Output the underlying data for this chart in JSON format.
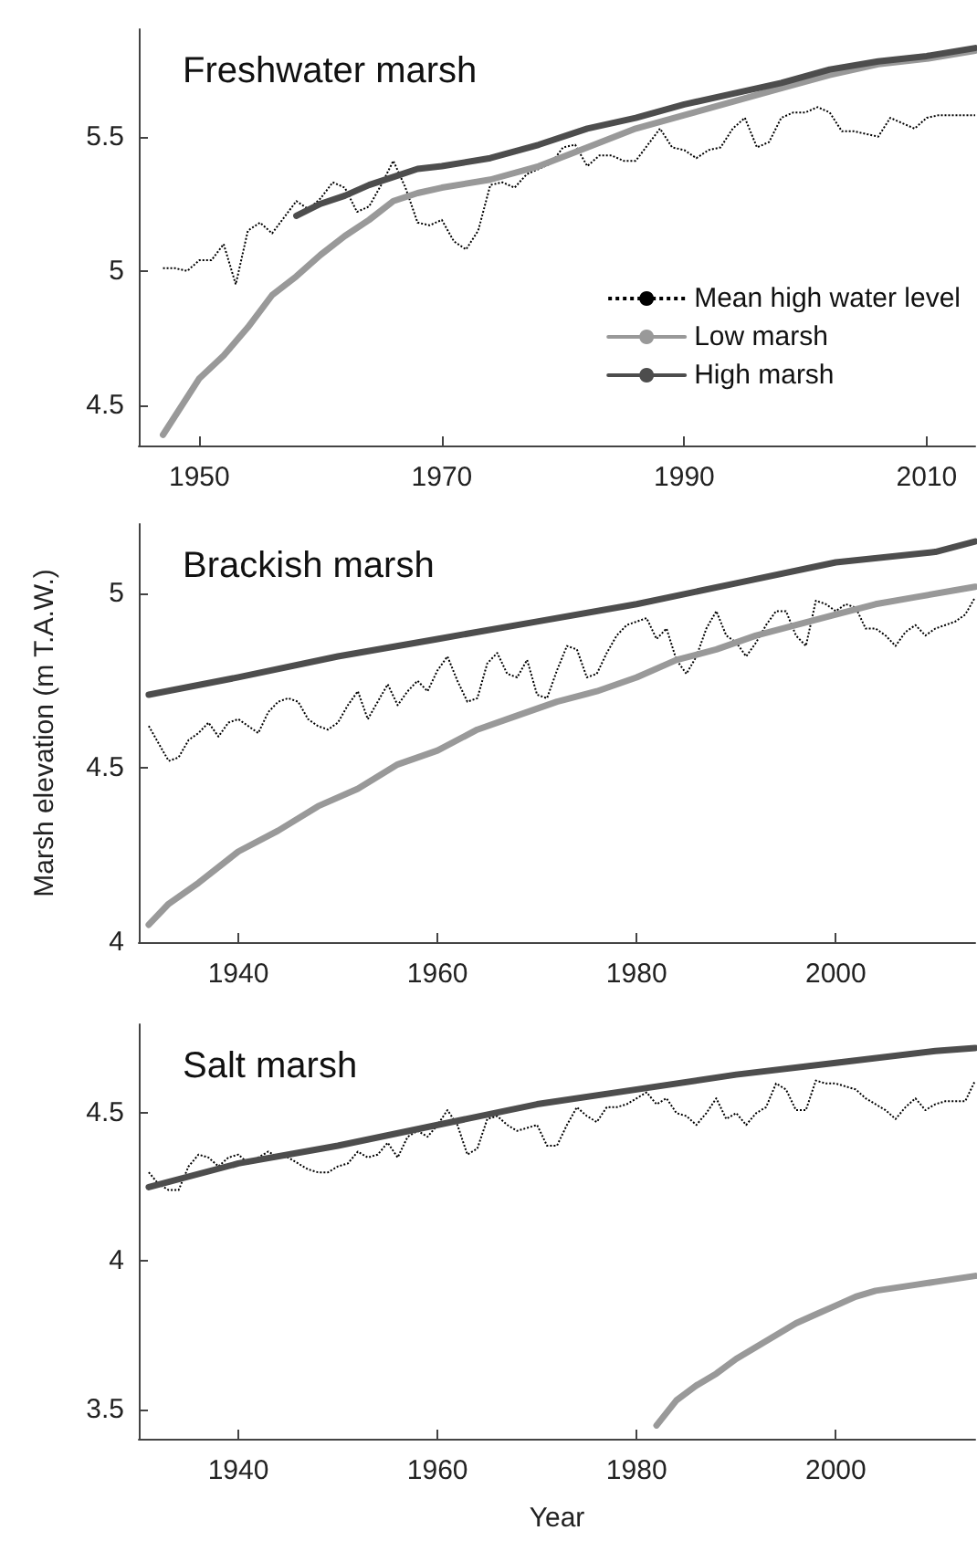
{
  "chart_data": [
    {
      "type": "line",
      "title": "Freshwater marsh",
      "xlim": [
        1945,
        2014
      ],
      "xticks": [
        1950,
        1970,
        1990,
        2010
      ],
      "ylim": [
        4.35,
        5.9
      ],
      "yticks": [
        4.5,
        5,
        5.5
      ],
      "legend": "bottom right",
      "grid": false,
      "marker": "none",
      "series": [
        {
          "name": "Mean high water level",
          "color": "#000000",
          "line_style": "dotted",
          "x": [
            1947,
            1948,
            1949,
            1950,
            1951,
            1952,
            1953,
            1954,
            1955,
            1956,
            1957,
            1958,
            1959,
            1960,
            1961,
            1962,
            1963,
            1964,
            1965,
            1966,
            1967,
            1968,
            1969,
            1970,
            1971,
            1972,
            1973,
            1974,
            1975,
            1976,
            1977,
            1978,
            1979,
            1980,
            1981,
            1982,
            1983,
            1984,
            1985,
            1986,
            1987,
            1988,
            1989,
            1990,
            1991,
            1992,
            1993,
            1994,
            1995,
            1996,
            1997,
            1998,
            1999,
            2000,
            2001,
            2002,
            2003,
            2004,
            2005,
            2006,
            2007,
            2008,
            2009,
            2010,
            2011,
            2012,
            2013,
            2014
          ],
          "values": [
            5.01,
            5.01,
            5.0,
            5.04,
            5.04,
            5.1,
            4.95,
            5.15,
            5.18,
            5.14,
            5.2,
            5.26,
            5.23,
            5.27,
            5.33,
            5.31,
            5.22,
            5.24,
            5.32,
            5.41,
            5.31,
            5.18,
            5.17,
            5.19,
            5.11,
            5.08,
            5.15,
            5.32,
            5.33,
            5.31,
            5.36,
            5.38,
            5.4,
            5.46,
            5.47,
            5.39,
            5.43,
            5.43,
            5.41,
            5.41,
            5.47,
            5.53,
            5.46,
            5.45,
            5.42,
            5.45,
            5.46,
            5.53,
            5.57,
            5.46,
            5.48,
            5.57,
            5.59,
            5.59,
            5.61,
            5.59,
            5.52,
            5.52,
            5.51,
            5.5,
            5.57,
            5.55,
            5.53,
            5.57,
            5.58,
            5.58,
            5.58,
            5.58
          ]
        },
        {
          "name": "Low marsh",
          "color": "#999999",
          "line_style": "solid",
          "x": [
            1947,
            1950,
            1952,
            1954,
            1956,
            1958,
            1960,
            1962,
            1964,
            1966,
            1968,
            1970,
            1974,
            1978,
            1982,
            1986,
            1990,
            1994,
            1998,
            2002,
            2006,
            2010,
            2014
          ],
          "values": [
            4.39,
            4.6,
            4.685,
            4.79,
            4.91,
            4.98,
            5.06,
            5.13,
            5.19,
            5.26,
            5.29,
            5.31,
            5.34,
            5.39,
            5.46,
            5.53,
            5.58,
            5.63,
            5.68,
            5.73,
            5.77,
            5.79,
            5.82
          ]
        },
        {
          "name": "High marsh",
          "color": "#4d4d4d",
          "line_style": "solid",
          "x": [
            1958,
            1960,
            1962,
            1964,
            1966,
            1968,
            1970,
            1974,
            1978,
            1982,
            1986,
            1990,
            1994,
            1998,
            2002,
            2006,
            2010,
            2014
          ],
          "values": [
            5.205,
            5.25,
            5.28,
            5.32,
            5.35,
            5.38,
            5.39,
            5.42,
            5.47,
            5.53,
            5.57,
            5.62,
            5.66,
            5.7,
            5.75,
            5.78,
            5.8,
            5.83
          ]
        }
      ]
    },
    {
      "type": "line",
      "title": "Brackish marsh",
      "ylabel": "Marsh elevation (m T.A.W.)",
      "xlim": [
        1930,
        2014
      ],
      "xticks": [
        1940,
        1960,
        1980,
        2000
      ],
      "ylim": [
        4,
        5.2
      ],
      "yticks": [
        4,
        4.5,
        5
      ],
      "legend": false,
      "grid": false,
      "marker": "none",
      "series": [
        {
          "color": "#000000",
          "line_style": "dotted",
          "x": [
            1931,
            1932,
            1933,
            1934,
            1935,
            1936,
            1937,
            1938,
            1939,
            1940,
            1941,
            1942,
            1943,
            1944,
            1945,
            1946,
            1947,
            1948,
            1949,
            1950,
            1951,
            1952,
            1953,
            1954,
            1955,
            1956,
            1957,
            1958,
            1959,
            1960,
            1961,
            1962,
            1963,
            1964,
            1965,
            1966,
            1967,
            1968,
            1969,
            1970,
            1971,
            1972,
            1973,
            1974,
            1975,
            1976,
            1977,
            1978,
            1979,
            1980,
            1981,
            1982,
            1983,
            1984,
            1985,
            1986,
            1987,
            1988,
            1989,
            1990,
            1991,
            1992,
            1993,
            1994,
            1995,
            1996,
            1997,
            1998,
            1999,
            2000,
            2001,
            2002,
            2003,
            2004,
            2005,
            2006,
            2007,
            2008,
            2009,
            2010,
            2011,
            2012,
            2013,
            2014
          ],
          "values": [
            4.62,
            4.57,
            4.52,
            4.53,
            4.58,
            4.6,
            4.63,
            4.59,
            4.63,
            4.64,
            4.62,
            4.6,
            4.66,
            4.69,
            4.7,
            4.69,
            4.64,
            4.62,
            4.61,
            4.63,
            4.68,
            4.72,
            4.64,
            4.69,
            4.74,
            4.68,
            4.72,
            4.75,
            4.72,
            4.78,
            4.82,
            4.75,
            4.69,
            4.7,
            4.8,
            4.83,
            4.77,
            4.76,
            4.81,
            4.71,
            4.7,
            4.78,
            4.85,
            4.84,
            4.76,
            4.77,
            4.83,
            4.88,
            4.91,
            4.92,
            4.93,
            4.87,
            4.9,
            4.81,
            4.77,
            4.82,
            4.9,
            4.95,
            4.88,
            4.86,
            4.82,
            4.86,
            4.91,
            4.95,
            4.95,
            4.88,
            4.85,
            4.98,
            4.97,
            4.95,
            4.97,
            4.96,
            4.9,
            4.9,
            4.88,
            4.85,
            4.89,
            4.91,
            4.88,
            4.9,
            4.91,
            4.92,
            4.94,
            4.99
          ]
        },
        {
          "color": "#999999",
          "line_style": "solid",
          "x": [
            1931,
            1933,
            1936,
            1940,
            1944,
            1948,
            1952,
            1956,
            1960,
            1964,
            1968,
            1972,
            1976,
            1980,
            1984,
            1988,
            1992,
            1996,
            2000,
            2004,
            2008,
            2012,
            2014
          ],
          "values": [
            4.05,
            4.11,
            4.17,
            4.26,
            4.32,
            4.39,
            4.44,
            4.51,
            4.55,
            4.61,
            4.65,
            4.69,
            4.72,
            4.76,
            4.81,
            4.84,
            4.88,
            4.91,
            4.94,
            4.97,
            4.99,
            5.01,
            5.02
          ]
        },
        {
          "color": "#4d4d4d",
          "line_style": "solid",
          "x": [
            1931,
            1940,
            1950,
            1960,
            1970,
            1980,
            1990,
            2000,
            2010,
            2014
          ],
          "values": [
            4.71,
            4.76,
            4.82,
            4.87,
            4.92,
            4.97,
            5.03,
            5.09,
            5.12,
            5.15
          ]
        }
      ]
    },
    {
      "type": "line",
      "title": "Salt marsh",
      "xlabel": "Year",
      "xlim": [
        1930,
        2014
      ],
      "xticks": [
        1940,
        1960,
        1980,
        2000
      ],
      "ylim": [
        3.4,
        4.8
      ],
      "yticks": [
        3.5,
        4,
        4.5
      ],
      "legend": false,
      "grid": false,
      "marker": "none",
      "series": [
        {
          "color": "#000000",
          "line_style": "dotted",
          "x": [
            1931,
            1932,
            1933,
            1934,
            1935,
            1936,
            1937,
            1938,
            1939,
            1940,
            1941,
            1942,
            1943,
            1944,
            1945,
            1946,
            1947,
            1948,
            1949,
            1950,
            1951,
            1952,
            1953,
            1954,
            1955,
            1956,
            1957,
            1958,
            1959,
            1960,
            1961,
            1962,
            1963,
            1964,
            1965,
            1966,
            1967,
            1968,
            1969,
            1970,
            1971,
            1972,
            1973,
            1974,
            1975,
            1976,
            1977,
            1978,
            1979,
            1980,
            1981,
            1982,
            1983,
            1984,
            1985,
            1986,
            1987,
            1988,
            1989,
            1990,
            1991,
            1992,
            1993,
            1994,
            1995,
            1996,
            1997,
            1998,
            1999,
            2000,
            2001,
            2002,
            2003,
            2004,
            2005,
            2006,
            2007,
            2008,
            2009,
            2010,
            2011,
            2012,
            2013,
            2014
          ],
          "values": [
            4.3,
            4.26,
            4.24,
            4.24,
            4.32,
            4.36,
            4.35,
            4.32,
            4.35,
            4.36,
            4.33,
            4.35,
            4.37,
            4.35,
            4.35,
            4.33,
            4.31,
            4.3,
            4.3,
            4.32,
            4.33,
            4.37,
            4.35,
            4.36,
            4.4,
            4.35,
            4.42,
            4.44,
            4.42,
            4.46,
            4.51,
            4.46,
            4.36,
            4.38,
            4.48,
            4.49,
            4.46,
            4.44,
            4.45,
            4.46,
            4.39,
            4.39,
            4.46,
            4.52,
            4.49,
            4.47,
            4.52,
            4.52,
            4.53,
            4.55,
            4.57,
            4.53,
            4.55,
            4.5,
            4.49,
            4.46,
            4.5,
            4.55,
            4.48,
            4.5,
            4.46,
            4.5,
            4.52,
            4.6,
            4.58,
            4.51,
            4.51,
            4.61,
            4.6,
            4.6,
            4.59,
            4.58,
            4.55,
            4.53,
            4.51,
            4.48,
            4.52,
            4.55,
            4.51,
            4.53,
            4.54,
            4.54,
            4.54,
            4.61
          ]
        },
        {
          "color": "#999999",
          "line_style": "solid",
          "x": [
            1982,
            1984,
            1986,
            1988,
            1990,
            1992,
            1994,
            1996,
            1998,
            2000,
            2002,
            2004,
            2006,
            2008,
            2010,
            2012,
            2014
          ],
          "values": [
            3.445,
            3.53,
            3.58,
            3.62,
            3.67,
            3.71,
            3.75,
            3.79,
            3.82,
            3.85,
            3.88,
            3.9,
            3.91,
            3.92,
            3.93,
            3.94,
            3.95
          ]
        },
        {
          "color": "#4d4d4d",
          "line_style": "solid",
          "x": [
            1931,
            1940,
            1950,
            1960,
            1970,
            1980,
            1990,
            2000,
            2010,
            2014
          ],
          "values": [
            4.25,
            4.33,
            4.39,
            4.46,
            4.53,
            4.58,
            4.63,
            4.67,
            4.71,
            4.72
          ]
        }
      ]
    }
  ]
}
